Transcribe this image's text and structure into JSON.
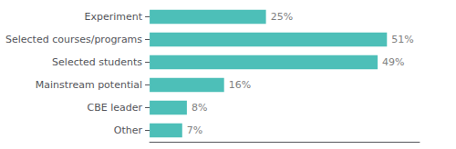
{
  "chart_data": {
    "type": "bar",
    "orientation": "horizontal",
    "categories": [
      "Experiment",
      "Selected courses/programs",
      "Selected students",
      "Mainstream potential",
      "CBE leader",
      "Other"
    ],
    "values": [
      25,
      51,
      49,
      16,
      8,
      7
    ],
    "value_labels": [
      "25%",
      "51%",
      "49%",
      "16%",
      "8%",
      "7%"
    ],
    "color": "#4dbfb8",
    "xlim": [
      0,
      58
    ],
    "data_labels": true,
    "tick_labels": "y",
    "grid": false
  }
}
